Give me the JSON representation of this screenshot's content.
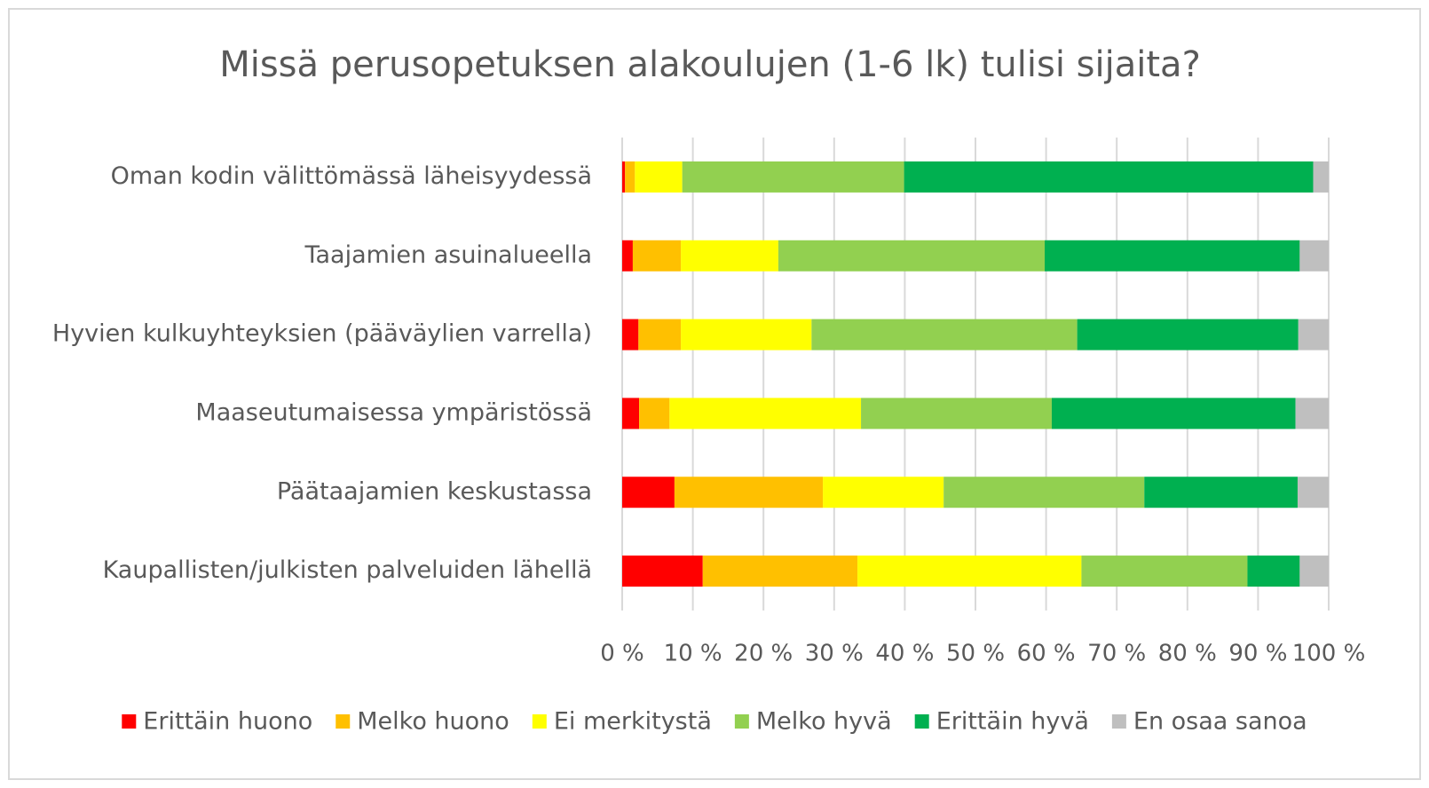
{
  "chart_data": {
    "type": "stacked_bar_horizontal",
    "title": "Missä perusopetuksen  alakoulujen (1-6 lk) tulisi sijaita?",
    "categories": [
      "Oman kodin välittömässä läheisyydessä",
      "Taajamien asuinalueella",
      "Hyvien kulkuyhteyksien (pääväylien varrella)",
      "Maaseutumaisessa ympäristössä",
      "Päätaajamien keskustassa",
      "Kaupallisten/julkisten palveluiden lähellä"
    ],
    "series": [
      {
        "name": "Erittäin huono",
        "color": "#ff0000",
        "values": [
          0.4,
          1.5,
          2.3,
          2.4,
          7.4,
          11.4
        ]
      },
      {
        "name": "Melko huono",
        "color": "#ffc000",
        "values": [
          1.4,
          6.8,
          6.0,
          4.3,
          21.0,
          21.9
        ]
      },
      {
        "name": "Ei merkitystä",
        "color": "#ffff00",
        "values": [
          6.7,
          13.8,
          18.5,
          27.1,
          17.1,
          31.7
        ]
      },
      {
        "name": "Melko hyvä",
        "color": "#92d050",
        "values": [
          31.4,
          37.7,
          37.6,
          27.0,
          28.4,
          23.5
        ]
      },
      {
        "name": "Erittäin hyvä",
        "color": "#00b050",
        "values": [
          57.9,
          36.1,
          31.3,
          34.5,
          21.7,
          7.4
        ]
      },
      {
        "name": "En osaa sanoa",
        "color": "#bfbfbf",
        "values": [
          2.2,
          4.1,
          4.3,
          4.7,
          4.4,
          4.1
        ]
      }
    ],
    "xlim": [
      0,
      100
    ],
    "xticks": [
      {
        "value": 0,
        "label": "0 %"
      },
      {
        "value": 10,
        "label": "10 %"
      },
      {
        "value": 20,
        "label": "20 %"
      },
      {
        "value": 30,
        "label": "30 %"
      },
      {
        "value": 40,
        "label": "40 %"
      },
      {
        "value": 50,
        "label": "50 %"
      },
      {
        "value": 60,
        "label": "60 %"
      },
      {
        "value": 70,
        "label": "70 %"
      },
      {
        "value": 80,
        "label": "80 %"
      },
      {
        "value": 90,
        "label": "90 %"
      },
      {
        "value": 100,
        "label": "100 %"
      }
    ],
    "grid": true,
    "legend": "bottom"
  }
}
